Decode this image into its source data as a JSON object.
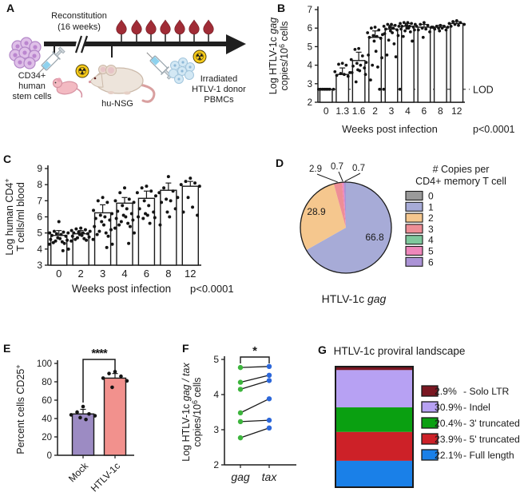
{
  "panel_labels": [
    "A",
    "B",
    "C",
    "D",
    "E",
    "F",
    "G"
  ],
  "icons": {
    "radiation_glyph": "☢"
  },
  "panelA": {
    "reconstitution": [
      "Reconstitution",
      "(16 weeks)"
    ],
    "stem_cells": [
      "CD34+",
      "human",
      "stem cells"
    ],
    "mouse_label": "hu-NSG",
    "pbmcs": [
      "Irradiated",
      "HTLV-1 donor",
      "PBMCs"
    ]
  },
  "chart_data": [
    {
      "panel": "B",
      "type": "bar-scatter",
      "xlabel": "Weeks post infection",
      "p_value": "p<0.0001",
      "ylabel_lines": [
        [
          {
            "t": "Log HTLV-1c "
          },
          {
            "t": "gag",
            "italic": true
          }
        ],
        [
          {
            "t": "copies/10"
          },
          {
            "t": "6",
            "sup": true
          },
          {
            "t": " cells"
          }
        ]
      ],
      "categories": [
        "0",
        "1.3",
        "1.6",
        "2",
        "3",
        "4",
        "6",
        "8",
        "12"
      ],
      "bar_values": [
        2.7,
        3.5,
        4.25,
        5.5,
        5.95,
        6.1,
        6.05,
        6.05,
        6.25
      ],
      "error_upper": [
        0.05,
        0.35,
        0.45,
        0.35,
        0.2,
        0.15,
        0.15,
        0.1,
        0.1
      ],
      "points": [
        [
          2.7,
          2.7,
          2.7,
          2.7,
          2.7,
          2.7,
          2.7,
          2.7
        ],
        [
          3.4,
          3.45,
          3.5,
          3.55,
          3.6,
          3.65,
          4.0,
          4.05,
          4.1
        ],
        [
          3.1,
          3.5,
          3.6,
          3.7,
          3.75,
          3.85,
          3.95,
          4.0,
          4.1,
          4.15,
          4.3,
          4.5,
          4.85,
          4.9
        ],
        [
          2.7,
          3.2,
          3.9,
          4.0,
          4.4,
          4.55,
          4.75,
          5.3,
          5.45,
          5.5,
          5.55,
          5.6,
          5.65,
          5.75,
          5.9,
          6.0,
          6.05
        ],
        [
          2.7,
          4.45,
          4.55,
          5.15,
          5.35,
          5.6,
          5.7,
          5.75,
          5.85,
          5.9,
          5.95,
          6.0,
          6.05,
          6.1,
          6.1,
          6.15,
          6.2,
          6.2
        ],
        [
          2.7,
          5.3,
          5.55,
          5.8,
          5.85,
          5.9,
          5.95,
          6.0,
          6.0,
          6.05,
          6.1,
          6.1,
          6.15,
          6.2,
          6.25,
          6.25,
          6.3,
          6.3
        ],
        [
          5.5,
          5.8,
          5.9,
          5.95,
          6.0,
          6.05,
          6.1,
          6.15,
          6.2,
          6.3
        ],
        [
          5.85,
          5.9,
          5.95,
          6.0,
          6.0,
          6.05,
          6.05,
          6.1,
          6.1,
          6.15
        ],
        [
          6.1,
          6.15,
          6.2,
          6.2,
          6.25,
          6.3,
          6.35,
          6.4
        ]
      ],
      "ylim": [
        2,
        7
      ],
      "yticks": [
        2,
        3,
        4,
        5,
        6,
        7
      ],
      "lod": {
        "value": 2.7,
        "label": "LOD"
      }
    },
    {
      "panel": "C",
      "type": "bar-scatter",
      "xlabel": "Weeks post infection",
      "p_value": "p<0.0001",
      "ylabel_lines": [
        [
          {
            "t": "Log human CD4"
          },
          {
            "t": "+",
            "sup": true
          }
        ],
        [
          {
            "t": "T cells/ml blood"
          }
        ]
      ],
      "categories": [
        "0",
        "2",
        "3",
        "4",
        "6",
        "8",
        "12"
      ],
      "bar_values": [
        4.85,
        4.95,
        6.25,
        6.85,
        7.15,
        7.65,
        7.9
      ],
      "error_upper": [
        0.3,
        0.2,
        0.5,
        0.35,
        0.45,
        0.45,
        0.3
      ],
      "points": [
        [
          3.9,
          4.0,
          4.3,
          4.35,
          4.4,
          4.45,
          4.5,
          4.55,
          4.6,
          4.65,
          4.7,
          4.8,
          4.85,
          4.9,
          4.95,
          5.0,
          5.0,
          5.05,
          5.1,
          5.7
        ],
        [
          4.5,
          4.55,
          4.6,
          4.65,
          4.7,
          4.75,
          4.8,
          4.85,
          4.9,
          4.95,
          5.0,
          5.0,
          5.05,
          5.1,
          5.15,
          5.2,
          5.25,
          5.3
        ],
        [
          4.1,
          4.3,
          4.6,
          4.8,
          4.9,
          5.0,
          5.1,
          5.2,
          5.4,
          5.5,
          5.7,
          5.8,
          5.9,
          6.0,
          6.1,
          6.2,
          6.4,
          6.9,
          7.0,
          7.2
        ],
        [
          4.35,
          5.0,
          5.3,
          5.4,
          5.5,
          5.6,
          5.7,
          5.8,
          5.9,
          6.0,
          6.1,
          6.2,
          6.35,
          6.5,
          6.7,
          6.9,
          7.0,
          7.1,
          7.5,
          7.8
        ],
        [
          5.6,
          5.9,
          5.95,
          6.0,
          6.1,
          6.2,
          6.3,
          6.5,
          6.7,
          7.0,
          7.3,
          7.5,
          7.6,
          7.8,
          7.9
        ],
        [
          5.5,
          6.0,
          6.3,
          6.5,
          6.9,
          7.0,
          7.1,
          7.2,
          7.5,
          7.6,
          7.8,
          8.5
        ],
        [
          6.1,
          6.3,
          6.6,
          7.2,
          7.9,
          8.0,
          8.1,
          8.2,
          8.4
        ]
      ],
      "ylim": [
        3,
        9
      ],
      "yticks": [
        3,
        4,
        5,
        6,
        7,
        8,
        9
      ]
    },
    {
      "panel": "D",
      "type": "pie",
      "title_rich": [
        {
          "t": "HTLV-1c "
        },
        {
          "t": "gag",
          "italic": true
        }
      ],
      "legend_title_lines": [
        "# Copies per",
        "CD4+ memory T cell"
      ],
      "legend": [
        {
          "label": "0",
          "color": "#9a9a9a"
        },
        {
          "label": "1",
          "color": "#a7abd7"
        },
        {
          "label": "2",
          "color": "#f5c78e"
        },
        {
          "label": "3",
          "color": "#ee8e96"
        },
        {
          "label": "4",
          "color": "#7fc89d"
        },
        {
          "label": "5",
          "color": "#ee87bb"
        },
        {
          "label": "6",
          "color": "#ab93d6"
        }
      ],
      "slices": [
        {
          "copies": "1",
          "value": 66.8,
          "color": "#a7abd7"
        },
        {
          "copies": "2",
          "value": 28.9,
          "color": "#f5c78e"
        },
        {
          "copies": "3",
          "value": 2.9,
          "color": "#ee8e96"
        },
        {
          "copies": "5",
          "value": 0.7,
          "color": "#ee87bb"
        },
        {
          "copies": "6",
          "value": 0.7,
          "color": "#ab93d6"
        }
      ]
    },
    {
      "panel": "E",
      "type": "bar-scatter",
      "ylabel_lines": [
        [
          {
            "t": "Percent cells CD25"
          },
          {
            "t": "+",
            "sup": true
          }
        ]
      ],
      "categories": [
        "Mock",
        "HTLV-1c"
      ],
      "bar_values": [
        45,
        84
      ],
      "bar_colors": [
        "#9c8bc3",
        "#f2918d"
      ],
      "error_upper": [
        5,
        5
      ],
      "points": [
        [
          39,
          41,
          43,
          44,
          45,
          47,
          53
        ],
        [
          74,
          81,
          84,
          86,
          89,
          91
        ]
      ],
      "ylim": [
        0,
        100
      ],
      "yticks": [
        0,
        20,
        40,
        60,
        80,
        100
      ],
      "significance": "****"
    },
    {
      "panel": "F",
      "type": "paired-line",
      "ylabel_lines": [
        [
          {
            "t": "Log HTLV-1c "
          },
          {
            "t": "gag / tax",
            "italic": true
          }
        ],
        [
          {
            "t": "copies/10"
          },
          {
            "t": "6",
            "sup": true
          },
          {
            "t": " cells"
          }
        ]
      ],
      "categories": [
        "gag",
        "tax"
      ],
      "pairs": [
        [
          4.77,
          4.8
        ],
        [
          4.35,
          4.55
        ],
        [
          4.15,
          4.4
        ],
        [
          3.48,
          3.88
        ],
        [
          3.23,
          3.27
        ],
        [
          2.77,
          3.05
        ]
      ],
      "point_colors": [
        "#3db53d",
        "#2c67da"
      ],
      "ylim": [
        2,
        5
      ],
      "yticks": [
        2,
        3,
        4,
        5
      ],
      "significance": "*"
    },
    {
      "panel": "G",
      "type": "stacked-bar",
      "title": "HTLV-1c proviral landscape",
      "segments": [
        {
          "pct": 2.9,
          "label": "Solo LTR",
          "color": "#7a1722"
        },
        {
          "pct": 30.9,
          "label": "Indel",
          "color": "#b7a1f3"
        },
        {
          "pct": 20.4,
          "label": "3' truncated",
          "color": "#0aa011"
        },
        {
          "pct": 23.9,
          "label": "5' truncated",
          "color": "#cd2128"
        },
        {
          "pct": 22.1,
          "label": "Full length",
          "color": "#1a80e8"
        }
      ]
    }
  ]
}
